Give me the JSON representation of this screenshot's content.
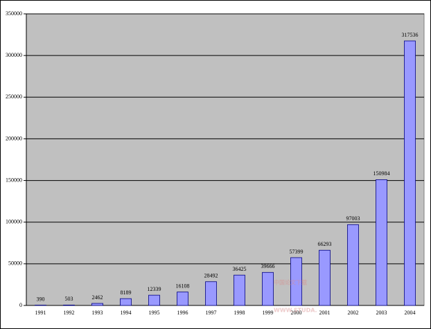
{
  "chart_data": {
    "type": "bar",
    "categories": [
      "1991",
      "1992",
      "1993",
      "1994",
      "1995",
      "1996",
      "1997",
      "1998",
      "1999",
      "2000",
      "2001",
      "2002",
      "2003",
      "2004"
    ],
    "values": [
      390,
      503,
      2462,
      8189,
      12339,
      16108,
      28492,
      36425,
      39666,
      57399,
      66293,
      97003,
      150984,
      317536
    ],
    "color": "#9999ff",
    "ylim": [
      0,
      350000
    ],
    "yticks": [
      0,
      50000,
      100000,
      150000,
      200000,
      250000,
      300000,
      350000
    ],
    "grid": true,
    "plot_background": "#c0c0c0",
    "watermark": [
      "中国论文下载",
      "WWW.STUDA."
    ]
  }
}
